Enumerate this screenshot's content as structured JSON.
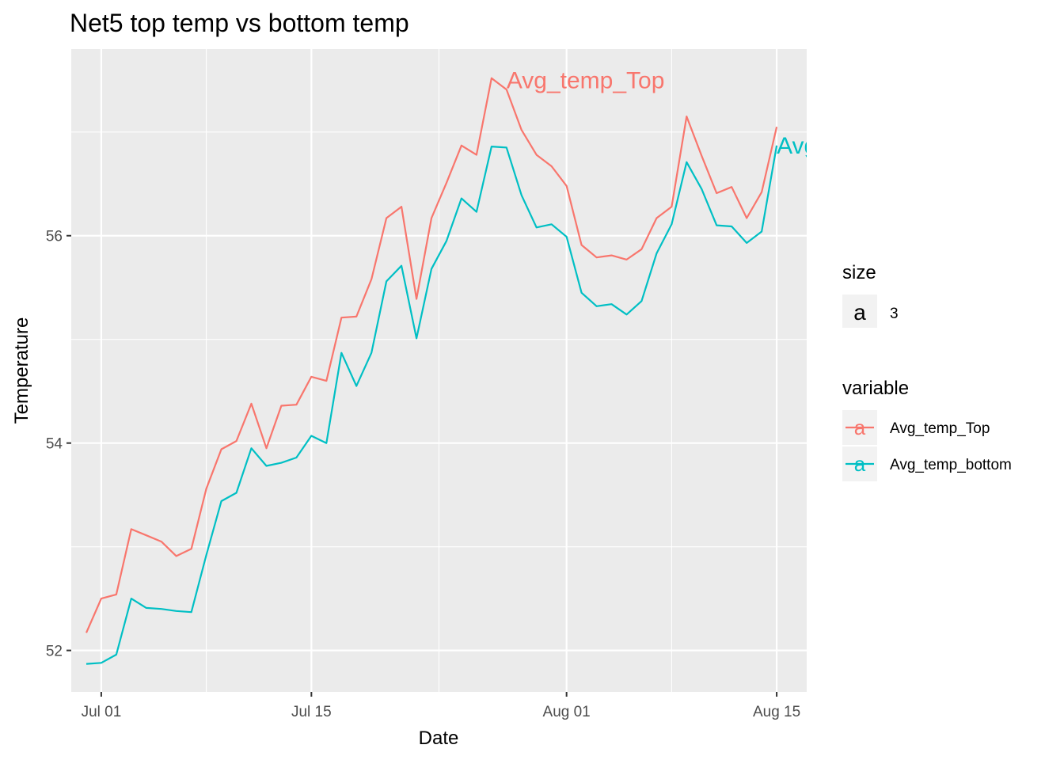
{
  "chart_data": {
    "type": "line",
    "title": "Net5 top temp vs bottom temp",
    "xlabel": "Date",
    "ylabel": "Temperature",
    "x_ticks": [
      {
        "date": "2016-07-01",
        "label": "Jul 01"
      },
      {
        "date": "2016-07-15",
        "label": "Jul 15"
      },
      {
        "date": "2016-08-01",
        "label": "Aug 01"
      },
      {
        "date": "2016-08-15",
        "label": "Aug 15"
      }
    ],
    "y_ticks": [
      52,
      54,
      56
    ],
    "xlim": [
      "2016-06-29",
      "2016-08-17"
    ],
    "ylim": [
      51.6,
      57.8
    ],
    "grid": true,
    "x": [
      "2016-06-30",
      "2016-07-01",
      "2016-07-02",
      "2016-07-03",
      "2016-07-04",
      "2016-07-05",
      "2016-07-06",
      "2016-07-07",
      "2016-07-08",
      "2016-07-09",
      "2016-07-10",
      "2016-07-11",
      "2016-07-12",
      "2016-07-13",
      "2016-07-14",
      "2016-07-15",
      "2016-07-16",
      "2016-07-17",
      "2016-07-18",
      "2016-07-19",
      "2016-07-20",
      "2016-07-21",
      "2016-07-22",
      "2016-07-23",
      "2016-07-24",
      "2016-07-25",
      "2016-07-26",
      "2016-07-27",
      "2016-07-28",
      "2016-07-29",
      "2016-07-30",
      "2016-07-31",
      "2016-08-01",
      "2016-08-02",
      "2016-08-03",
      "2016-08-04",
      "2016-08-05",
      "2016-08-06",
      "2016-08-07",
      "2016-08-08",
      "2016-08-09",
      "2016-08-10",
      "2016-08-11",
      "2016-08-12",
      "2016-08-13",
      "2016-08-14",
      "2016-08-15"
    ],
    "series": [
      {
        "name": "Avg_temp_Top",
        "color": "#F8766D",
        "values": [
          52.17,
          52.5,
          52.54,
          53.17,
          53.11,
          53.05,
          52.91,
          52.98,
          53.56,
          53.94,
          54.02,
          54.38,
          53.95,
          54.36,
          54.37,
          54.64,
          54.6,
          55.21,
          55.22,
          55.58,
          56.17,
          56.28,
          55.39,
          56.17,
          56.51,
          56.87,
          56.78,
          57.52,
          57.41,
          57.02,
          56.78,
          56.67,
          56.48,
          55.91,
          55.79,
          55.81,
          55.77,
          55.87,
          56.17,
          56.28,
          57.15,
          56.77,
          56.41,
          56.47,
          56.17,
          56.42,
          57.05
        ]
      },
      {
        "name": "Avg_temp_bottom",
        "color": "#00BFC4",
        "values": [
          51.87,
          51.88,
          51.96,
          52.5,
          52.41,
          52.4,
          52.38,
          52.37,
          52.92,
          53.44,
          53.52,
          53.95,
          53.78,
          53.81,
          53.86,
          54.07,
          54.0,
          54.87,
          54.55,
          54.87,
          55.56,
          55.71,
          55.01,
          55.68,
          55.95,
          56.36,
          56.23,
          56.86,
          56.85,
          56.39,
          56.08,
          56.11,
          55.99,
          55.45,
          55.32,
          55.34,
          55.24,
          55.37,
          55.83,
          56.11,
          56.71,
          56.45,
          56.1,
          56.09,
          55.93,
          56.04,
          56.87
        ]
      }
    ],
    "annotations": [
      {
        "text": "Avg_temp_Top",
        "x": "2016-07-28",
        "y": 57.5,
        "series": "Avg_temp_Top"
      },
      {
        "text": "Avg_temp_bottom",
        "x": "2016-08-15",
        "y": 56.87,
        "series": "Avg_temp_bottom"
      }
    ],
    "legend": {
      "placement": "right",
      "size_title": "size",
      "size_key": "a",
      "size_value": "3",
      "variable_title": "variable",
      "variable_key": "a"
    }
  }
}
